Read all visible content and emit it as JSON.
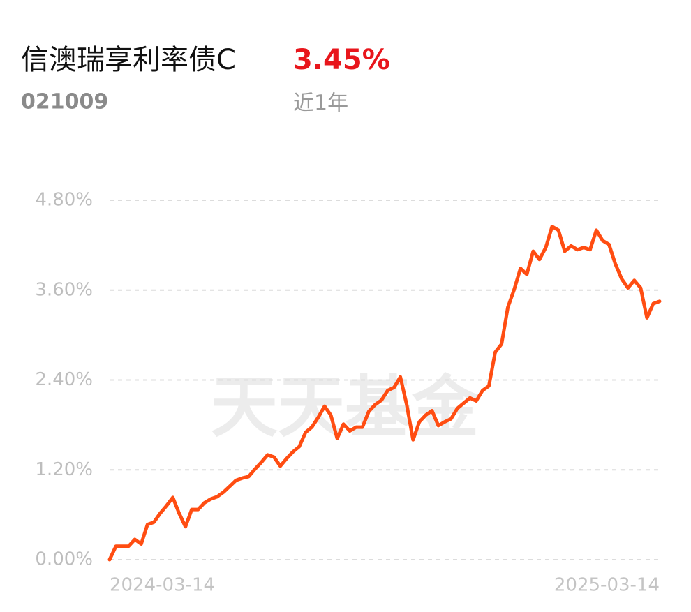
{
  "chart_data": {
    "type": "line",
    "title": "信澳瑞享利率债C",
    "return_label": "3.45%",
    "fund_code": "021009",
    "period": "近1年",
    "watermark": "天天基金",
    "color": "#ff4d12",
    "grid": true,
    "ylim": [
      0,
      4.8
    ],
    "yticks": [
      {
        "value": 0,
        "label": "0.00%"
      },
      {
        "value": 1.2,
        "label": "1.20%"
      },
      {
        "value": 2.4,
        "label": "2.40%"
      },
      {
        "value": 3.6,
        "label": "3.60%"
      },
      {
        "value": 4.8,
        "label": "4.80%"
      }
    ],
    "categories": [
      "2024-03-14",
      null,
      null,
      null,
      null,
      null,
      null,
      null,
      null,
      null,
      null,
      null,
      null,
      null,
      null,
      null,
      null,
      null,
      null,
      null,
      null,
      null,
      null,
      null,
      null,
      null,
      null,
      null,
      null,
      null,
      null,
      null,
      null,
      null,
      null,
      null,
      null,
      null,
      null,
      null,
      null,
      null,
      null,
      null,
      null,
      null,
      null,
      null,
      null,
      null,
      null,
      null,
      null,
      null,
      null,
      null,
      null,
      null,
      null,
      null,
      null,
      null,
      null,
      null,
      null,
      null,
      null,
      null,
      null,
      null,
      null,
      null,
      null,
      null,
      null,
      null,
      null,
      null,
      null,
      null,
      null,
      null,
      null,
      null,
      null,
      null,
      null,
      "2025-03-14"
    ],
    "values": [
      0,
      0.18,
      0.18,
      0.18,
      0.27,
      0.21,
      0.47,
      0.5,
      0.62,
      0.72,
      0.83,
      0.62,
      0.44,
      0.67,
      0.67,
      0.76,
      0.81,
      0.84,
      0.9,
      0.98,
      1.06,
      1.09,
      1.11,
      1.21,
      1.3,
      1.4,
      1.37,
      1.25,
      1.35,
      1.44,
      1.51,
      1.7,
      1.77,
      1.9,
      2.05,
      1.93,
      1.62,
      1.81,
      1.72,
      1.77,
      1.77,
      1.98,
      2.07,
      2.13,
      2.26,
      2.3,
      2.44,
      2.07,
      1.6,
      1.84,
      1.93,
      1.99,
      1.79,
      1.84,
      1.88,
      2.02,
      2.09,
      2.16,
      2.12,
      2.26,
      2.32,
      2.77,
      2.88,
      3.37,
      3.61,
      3.89,
      3.81,
      4.12,
      4.01,
      4.17,
      4.45,
      4.4,
      4.12,
      4.19,
      4.14,
      4.17,
      4.14,
      4.4,
      4.26,
      4.21,
      3.95,
      3.75,
      3.63,
      3.73,
      3.63,
      3.23,
      3.42,
      3.45
    ]
  }
}
